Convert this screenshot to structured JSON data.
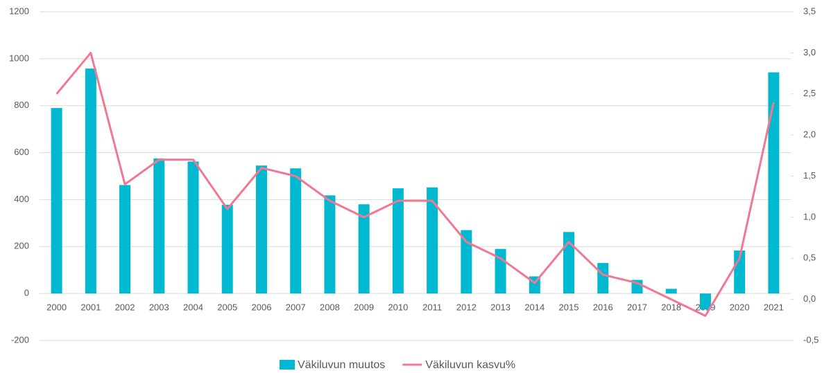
{
  "chart_data": {
    "type": "bar_line",
    "categories": [
      "2000",
      "2001",
      "2002",
      "2003",
      "2004",
      "2005",
      "2006",
      "2007",
      "2008",
      "2009",
      "2010",
      "2011",
      "2012",
      "2013",
      "2014",
      "2015",
      "2016",
      "2017",
      "2018",
      "2019",
      "2020",
      "2021"
    ],
    "series": [
      {
        "name": "Väkiluvun muutos",
        "type": "bar",
        "color": "#00b8d0",
        "values": [
          790,
          958,
          462,
          575,
          562,
          378,
          545,
          533,
          418,
          380,
          448,
          452,
          270,
          190,
          73,
          262,
          130,
          58,
          20,
          -68,
          183,
          942
        ]
      },
      {
        "name": "Väkiluvun kasvu%",
        "type": "line",
        "axis": "y2",
        "color": "#f07890",
        "values": [
          2.5,
          3.0,
          1.4,
          1.7,
          1.7,
          1.1,
          1.6,
          1.5,
          1.2,
          1.0,
          1.2,
          1.2,
          0.7,
          0.5,
          0.2,
          0.7,
          0.3,
          0.2,
          0.0,
          -0.2,
          0.5,
          2.4
        ]
      }
    ],
    "ylim": [
      -200,
      1200
    ],
    "yticks": [
      -200,
      0,
      200,
      400,
      600,
      800,
      1000,
      1200
    ],
    "y2lim": [
      -0.5,
      3.5
    ],
    "y2ticks": [
      {
        "value": -0.5,
        "label": "-0,5"
      },
      {
        "value": 0,
        "label": "0,0"
      },
      {
        "value": 0.5,
        "label": "0,5"
      },
      {
        "value": 1,
        "label": "1,0"
      },
      {
        "value": 1.5,
        "label": "1,5"
      },
      {
        "value": 2,
        "label": "2,0"
      },
      {
        "value": 2.5,
        "label": "2,5"
      },
      {
        "value": 3,
        "label": "3,0"
      },
      {
        "value": 3.5,
        "label": "3,5"
      }
    ],
    "grid": true,
    "legend": "bottom"
  }
}
